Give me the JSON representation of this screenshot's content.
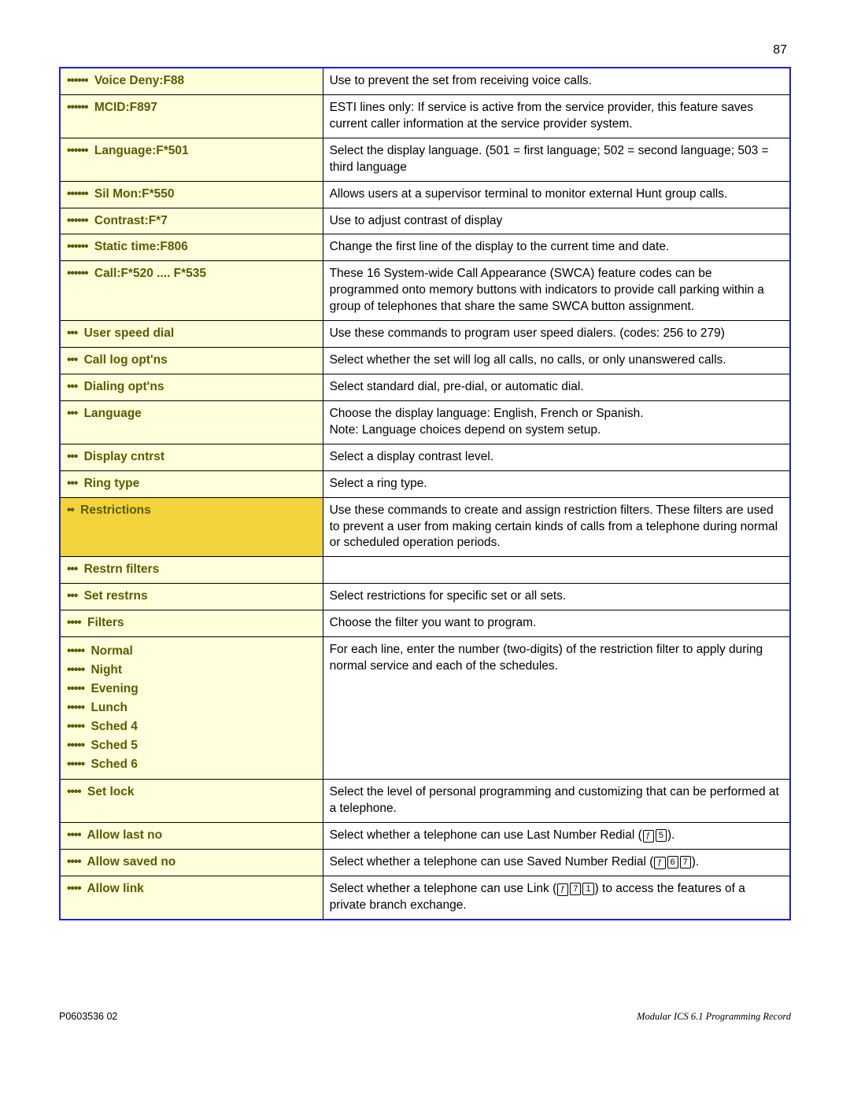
{
  "page_number": "87",
  "footer_left": "P0603536  02",
  "footer_right": "Modular ICS 6.1 Programming Record",
  "colors": {
    "cream": "#feffdb",
    "yellow": "#f3d33c",
    "olive_text": "#5b5b00",
    "blue_border": "#2020d0"
  },
  "rows": [
    {
      "id": "voice-deny",
      "level": 6,
      "bg": "cream",
      "label": "Voice Deny:F88",
      "desc": "Use to prevent the set from receiving voice calls."
    },
    {
      "id": "mcid",
      "level": 6,
      "bg": "cream",
      "label": "MCID:F897",
      "desc": "ESTI lines only: If service is active from the service provider, this feature saves current caller information at the service provider system."
    },
    {
      "id": "language-f501",
      "level": 6,
      "bg": "cream",
      "label": "Language:F*501",
      "desc": "Select the display language. (501 = first language; 502 = second language; 503 = third language"
    },
    {
      "id": "sil-mon",
      "level": 6,
      "bg": "cream",
      "label": "Sil Mon:F*550",
      "desc": "Allows users at a supervisor terminal to monitor external Hunt group calls."
    },
    {
      "id": "contrast",
      "level": 6,
      "bg": "cream",
      "label": "Contrast:F*7",
      "desc": "Use to adjust contrast of display"
    },
    {
      "id": "static-time",
      "level": 6,
      "bg": "cream",
      "label": "Static time:F806",
      "desc": "Change the first line of the display to the current time and date."
    },
    {
      "id": "call-swca",
      "level": 6,
      "bg": "cream",
      "label": "Call:F*520 .... F*535",
      "desc": "These 16 System-wide Call Appearance (SWCA) feature codes can be programmed onto memory buttons with indicators to provide call parking within a group of telephones that share the same SWCA button assignment.",
      "sep": "blue"
    },
    {
      "id": "user-speed-dial",
      "level": 3,
      "bg": "cream",
      "label": "User speed dial",
      "desc": "Use these commands to program user speed dialers. (codes: 256 to 279)"
    },
    {
      "id": "call-log-optns",
      "level": 3,
      "bg": "cream",
      "label": "Call log opt'ns",
      "desc": "Select whether the set will log all calls, no calls, or only unanswered calls."
    },
    {
      "id": "dialing-optns",
      "level": 3,
      "bg": "cream",
      "label": "Dialing opt'ns",
      "desc": "Select standard dial, pre-dial, or automatic dial."
    },
    {
      "id": "language",
      "level": 3,
      "bg": "cream",
      "label": "Language",
      "desc": "Choose the display language: English, French or Spanish.\nNote: Language choices depend on system setup."
    },
    {
      "id": "display-cntrst",
      "level": 3,
      "bg": "cream",
      "label": "Display cntrst",
      "desc": "Select a display contrast level."
    },
    {
      "id": "ring-type",
      "level": 3,
      "bg": "cream",
      "label": "Ring type",
      "desc": "Select a ring type."
    },
    {
      "id": "restrictions",
      "level": 2,
      "bg": "yellow",
      "label": "Restrictions",
      "desc": "Use these commands to create and assign restriction filters. These filters are used to prevent a user from making certain kinds of calls from a telephone during normal or scheduled operation periods."
    },
    {
      "id": "restrn-filters",
      "level": 3,
      "bg": "cream",
      "label": "Restrn filters",
      "desc": "",
      "sep": "blue"
    },
    {
      "id": "set-restrns",
      "level": 3,
      "bg": "cream",
      "label": "Set restrns",
      "desc": "Select restrictions for specific set or all sets."
    },
    {
      "id": "filters",
      "level": 4,
      "bg": "cream",
      "label": "Filters",
      "desc": "Choose the filter you want to program."
    },
    {
      "id": "schedules",
      "level": 5,
      "bg": "cream",
      "labels": [
        "Normal",
        "Night",
        "Evening",
        "Lunch",
        "Sched 4",
        "Sched 5",
        "Sched 6"
      ],
      "desc": "For each line, enter the number (two-digits) of the restriction filter to apply during normal service and each of the schedules."
    },
    {
      "id": "set-lock",
      "level": 4,
      "bg": "cream",
      "label": "Set lock",
      "desc": "Select the level of personal programming and customizing that can be performed at a telephone."
    },
    {
      "id": "allow-last-no",
      "level": 4,
      "bg": "cream",
      "label": "Allow last no",
      "desc_pre": "Select whether a telephone can use Last Number Redial (",
      "keys": [
        "ƒ",
        "5"
      ],
      "desc_post": ")."
    },
    {
      "id": "allow-saved-no",
      "level": 4,
      "bg": "cream",
      "label": "Allow saved no",
      "desc_pre": "Select whether a telephone can use Saved Number Redial (",
      "keys": [
        "ƒ",
        "6",
        "7"
      ],
      "desc_post": ")."
    },
    {
      "id": "allow-link",
      "level": 4,
      "bg": "cream",
      "label": "Allow link",
      "desc_pre": "Select whether a telephone can use Link (",
      "keys": [
        "ƒ",
        "7",
        "1"
      ],
      "desc_post": ") to access the features of a private branch exchange."
    }
  ]
}
